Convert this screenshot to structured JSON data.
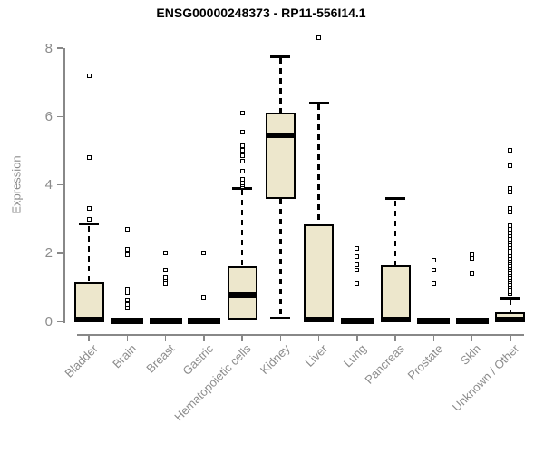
{
  "title": "ENSG00000248373 - RP11-556I14.1",
  "colors": {
    "box_fill": "#EDE7CC",
    "box_stroke": "#000000",
    "axis_line": "#888888",
    "axis_text": "#8c8c8c",
    "title_text": "#000000",
    "background": "#ffffff"
  },
  "chart_data": {
    "type": "boxplot",
    "title": "ENSG00000248373 - RP11-556I14.1",
    "xlabel": "",
    "ylabel": "Expression",
    "ylim": [
      0,
      8.4
    ],
    "yticks": [
      0,
      2,
      4,
      6,
      8
    ],
    "grid": false,
    "legend": null,
    "categories": [
      "Bladder",
      "Brain",
      "Breast",
      "Gastric",
      "Hematopoietic cells",
      "Kidney",
      "Liver",
      "Lung",
      "Pancreas",
      "Prostate",
      "Skin",
      "Unknown / Other"
    ],
    "series": [
      {
        "name": "Bladder",
        "median": 0.05,
        "q1": 0,
        "q3": 1.15,
        "whisker_low": null,
        "whisker_high": 2.85,
        "outliers": [
          3.0,
          3.3,
          4.8,
          7.2
        ]
      },
      {
        "name": "Brain",
        "median": 0.03,
        "q1": 0,
        "q3": 0.05,
        "whisker_low": null,
        "whisker_high": null,
        "outliers": [
          0.4,
          0.5,
          0.62,
          0.85,
          0.95,
          1.95,
          2.1,
          2.7
        ]
      },
      {
        "name": "Breast",
        "median": 0.03,
        "q1": 0,
        "q3": 0.05,
        "whisker_low": null,
        "whisker_high": null,
        "outliers": [
          1.1,
          1.2,
          1.3,
          1.5,
          2.0
        ]
      },
      {
        "name": "Gastric",
        "median": 0.03,
        "q1": 0,
        "q3": 0.05,
        "whisker_low": null,
        "whisker_high": null,
        "outliers": [
          0.7,
          2.0
        ]
      },
      {
        "name": "Hematopoietic cells",
        "median": 0.78,
        "q1": 0.05,
        "q3": 1.62,
        "whisker_low": null,
        "whisker_high": 3.9,
        "outliers": [
          3.95,
          4.0,
          4.05,
          4.1,
          4.15,
          4.4,
          4.7,
          4.85,
          5.0,
          5.15,
          5.55,
          6.1
        ]
      },
      {
        "name": "Kidney",
        "median": 5.45,
        "q1": 3.6,
        "q3": 6.1,
        "whisker_low": 0.1,
        "whisker_high": 7.75,
        "outliers": []
      },
      {
        "name": "Liver",
        "median": 0.05,
        "q1": 0,
        "q3": 2.85,
        "whisker_low": null,
        "whisker_high": 6.4,
        "outliers": [
          8.3
        ]
      },
      {
        "name": "Lung",
        "median": 0.03,
        "q1": 0,
        "q3": 0.05,
        "whisker_low": null,
        "whisker_high": null,
        "outliers": [
          1.1,
          1.5,
          1.65,
          1.9,
          2.15
        ]
      },
      {
        "name": "Pancreas",
        "median": 0.05,
        "q1": 0,
        "q3": 1.65,
        "whisker_low": null,
        "whisker_high": 3.6,
        "outliers": []
      },
      {
        "name": "Prostate",
        "median": 0.03,
        "q1": 0,
        "q3": 0.05,
        "whisker_low": null,
        "whisker_high": null,
        "outliers": [
          1.1,
          1.5,
          1.8
        ]
      },
      {
        "name": "Skin",
        "median": 0.03,
        "q1": 0,
        "q3": 0.05,
        "whisker_low": null,
        "whisker_high": null,
        "outliers": [
          1.4,
          1.85,
          1.95
        ]
      },
      {
        "name": "Unknown / Other",
        "median": 0.05,
        "q1": 0,
        "q3": 0.27,
        "whisker_low": null,
        "whisker_high": 0.68,
        "outliers": [
          0.8,
          0.87,
          0.94,
          1.01,
          1.08,
          1.15,
          1.22,
          1.29,
          1.36,
          1.43,
          1.5,
          1.57,
          1.64,
          1.71,
          1.78,
          1.85,
          1.92,
          2.0,
          2.08,
          2.16,
          2.24,
          2.32,
          2.4,
          2.5,
          2.6,
          2.7,
          2.8,
          3.2,
          3.3,
          3.8,
          3.9,
          4.55,
          5.0
        ]
      }
    ]
  }
}
